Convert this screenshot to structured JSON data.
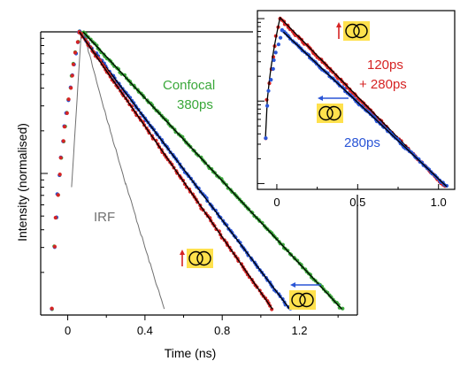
{
  "chart_data": [
    {
      "type": "scatter",
      "id": "main",
      "xlabel": "Time (ns)",
      "ylabel": "Intensity (normalised)",
      "yscale": "log",
      "xlim": [
        -0.14,
        1.5
      ],
      "ylim": [
        0.01,
        1.0
      ],
      "xticks": [
        0,
        0.4,
        0.8,
        1.2
      ],
      "xtick_labels": [
        "0",
        "0.4",
        "0.8",
        "1.2"
      ],
      "grid": false,
      "colors": {
        "red": "#d62424",
        "blue": "#2a55d6",
        "green": "#3aa83a",
        "gray": "#707070",
        "fit": "#000000",
        "marker_box": "#ffe14d"
      },
      "series": [
        {
          "name": "Confocal",
          "color": "#3aa83a",
          "kind": "points",
          "x": [
            -0.08,
            0.06,
            0.08,
            1.42
          ],
          "y": [
            0.011,
            1.0,
            1.0,
            0.011
          ]
        },
        {
          "color": "#2a55d6",
          "kind": "points",
          "x": [
            -0.08,
            0.06,
            1.15
          ],
          "y": [
            0.011,
            1.0,
            0.011
          ]
        },
        {
          "color": "#d62424",
          "kind": "points",
          "x": [
            -0.08,
            0.06,
            1.06
          ],
          "y": [
            0.011,
            1.0,
            0.011
          ]
        },
        {
          "name": "IRF",
          "color": "#707070",
          "kind": "line",
          "x": [
            0.02,
            0.07,
            0.1,
            0.2,
            0.3,
            0.4,
            0.5
          ],
          "y": [
            0.08,
            1.0,
            0.8,
            0.25,
            0.085,
            0.03,
            0.011
          ]
        }
      ],
      "annotations": [
        {
          "text": "Confocal",
          "color": "#3aa83a"
        },
        {
          "text": "380ps",
          "color": "#3aa83a"
        },
        {
          "text": "IRF",
          "color": "#707070"
        }
      ]
    },
    {
      "type": "scatter",
      "id": "inset",
      "yscale": "log",
      "xlim": [
        -0.12,
        1.1
      ],
      "xticks": [
        0,
        0.5,
        1.0
      ],
      "xtick_labels": [
        "0",
        "0.5",
        "1.0"
      ],
      "grid": false,
      "series": [
        {
          "color": "#d62424",
          "kind": "points",
          "x": [
            -0.07,
            0.02,
            1.04
          ],
          "y": [
            0.035,
            1.0,
            0.0092
          ]
        },
        {
          "color": "#2a55d6",
          "kind": "points",
          "x": [
            -0.07,
            0.03,
            1.05
          ],
          "y": [
            0.035,
            0.72,
            0.0092
          ]
        }
      ],
      "annotations": [
        {
          "text": "120ps",
          "color": "#d62424"
        },
        {
          "text": "+ 280ps",
          "color": "#d62424"
        },
        {
          "text": "280ps",
          "color": "#2a55d6"
        }
      ]
    }
  ]
}
